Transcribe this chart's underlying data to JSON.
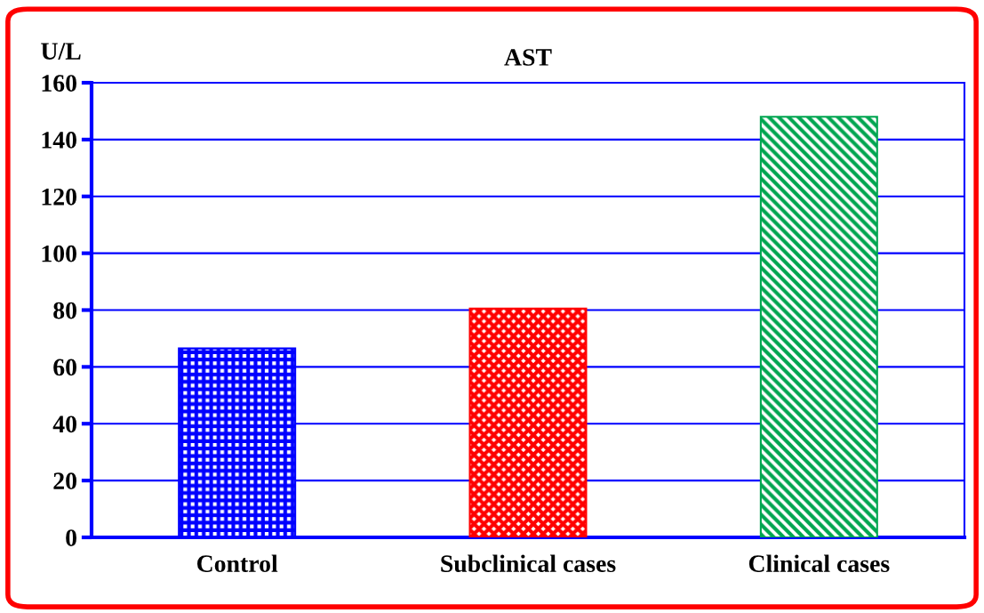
{
  "chart_data": {
    "type": "bar",
    "title": "AST",
    "ylabel": "U/L",
    "categories": [
      "Control",
      "Subclinical cases",
      "Clinical cases"
    ],
    "values": [
      66.5,
      80.5,
      148
    ],
    "colors": [
      "#0000ff",
      "#ff0000",
      "#00a550"
    ],
    "ylim": [
      0,
      160
    ],
    "yticks": [
      0,
      20,
      40,
      60,
      80,
      100,
      120,
      140,
      160
    ],
    "grid": "y"
  }
}
